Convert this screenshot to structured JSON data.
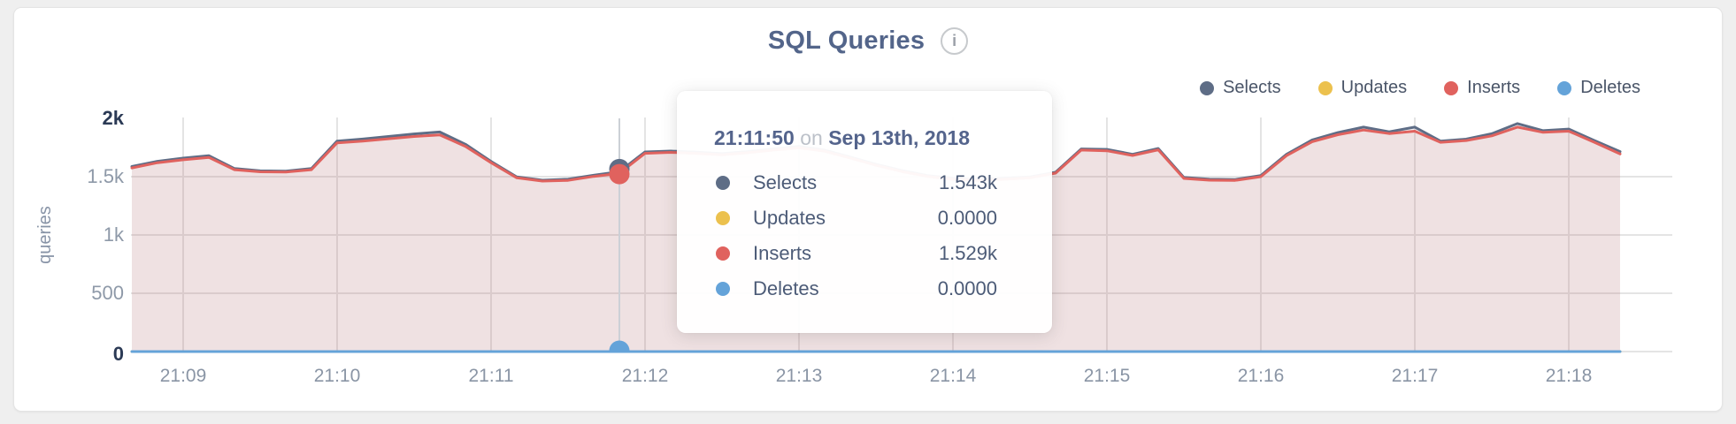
{
  "header": {
    "title": "SQL Queries",
    "info_icon_glyph": "i"
  },
  "legend": {
    "items": [
      {
        "label": "Selects",
        "color": "#5e6d86"
      },
      {
        "label": "Updates",
        "color": "#ecc14e"
      },
      {
        "label": "Inserts",
        "color": "#e0625e"
      },
      {
        "label": "Deletes",
        "color": "#64a3d9"
      }
    ]
  },
  "tooltip": {
    "time": "21:11:50",
    "on_word": "on",
    "date": "Sep 13th, 2018",
    "rows": [
      {
        "label": "Selects",
        "value": "1.543k",
        "color": "#5e6d86"
      },
      {
        "label": "Updates",
        "value": "0.0000",
        "color": "#ecc14e"
      },
      {
        "label": "Inserts",
        "value": "1.529k",
        "color": "#e0625e"
      },
      {
        "label": "Deletes",
        "value": "0.0000",
        "color": "#64a3d9"
      }
    ]
  },
  "chart_data": {
    "type": "area",
    "title": "SQL Queries",
    "ylabel": "queries",
    "ylim": [
      0,
      2000
    ],
    "grid": true,
    "legend_position": "top-right",
    "x_start": "21:08:40",
    "x_interval_seconds": 10,
    "x_ticks": [
      "21:09",
      "21:10",
      "21:11",
      "21:12",
      "21:13",
      "21:14",
      "21:15",
      "21:16",
      "21:17",
      "21:18"
    ],
    "y_ticks": [
      {
        "label": "2k",
        "value": 2000,
        "emphasis": true
      },
      {
        "label": "1.5k",
        "value": 1500,
        "emphasis": false
      },
      {
        "label": "1k",
        "value": 1000,
        "emphasis": false
      },
      {
        "label": "500",
        "value": 500,
        "emphasis": false
      },
      {
        "label": "0",
        "value": 0,
        "emphasis": true
      }
    ],
    "y_gridline_values": [
      1500,
      1000,
      500
    ],
    "series": [
      {
        "name": "Selects",
        "color": "#5e6d86",
        "fill_opacity": 0.08,
        "values": [
          1587,
          1632,
          1659,
          1680,
          1570,
          1550,
          1548,
          1570,
          1805,
          1823,
          1845,
          1867,
          1883,
          1778,
          1630,
          1498,
          1470,
          1478,
          1512,
          1543,
          1712,
          1720,
          1710,
          1698,
          1715,
          1738,
          1760,
          1728,
          1668,
          1606,
          1553,
          1510,
          1486,
          1476,
          1486,
          1498,
          1538,
          1738,
          1734,
          1692,
          1742,
          1493,
          1478,
          1476,
          1510,
          1692,
          1815,
          1878,
          1925,
          1885,
          1925,
          1805,
          1822,
          1868,
          1955,
          1895,
          1908,
          1810,
          1715
        ]
      },
      {
        "name": "Updates",
        "color": "#ecc14e",
        "fill_opacity": 0,
        "values": [
          0,
          0,
          0,
          0,
          0,
          0,
          0,
          0,
          0,
          0,
          0,
          0,
          0,
          0,
          0,
          0,
          0,
          0,
          0,
          0,
          0,
          0,
          0,
          0,
          0,
          0,
          0,
          0,
          0,
          0,
          0,
          0,
          0,
          0,
          0,
          0,
          0,
          0,
          0,
          0,
          0,
          0,
          0,
          0,
          0,
          0,
          0,
          0,
          0,
          0,
          0,
          0,
          0,
          0,
          0,
          0,
          0,
          0,
          0
        ]
      },
      {
        "name": "Inserts",
        "color": "#e0625e",
        "fill_opacity": 0.13,
        "values": [
          1575,
          1620,
          1645,
          1665,
          1560,
          1542,
          1540,
          1560,
          1790,
          1805,
          1825,
          1845,
          1858,
          1760,
          1620,
          1490,
          1462,
          1468,
          1502,
          1529,
          1700,
          1708,
          1700,
          1688,
          1705,
          1728,
          1748,
          1718,
          1660,
          1598,
          1545,
          1502,
          1478,
          1468,
          1478,
          1490,
          1530,
          1728,
          1722,
          1682,
          1730,
          1485,
          1470,
          1468,
          1500,
          1680,
          1800,
          1860,
          1900,
          1870,
          1890,
          1795,
          1810,
          1850,
          1925,
          1880,
          1890,
          1795,
          1695
        ]
      },
      {
        "name": "Deletes",
        "color": "#64a3d9",
        "fill_opacity": 0,
        "values": [
          0,
          0,
          0,
          0,
          0,
          0,
          0,
          0,
          0,
          0,
          0,
          0,
          0,
          0,
          0,
          0,
          0,
          0,
          0,
          0,
          0,
          0,
          0,
          0,
          0,
          0,
          0,
          0,
          0,
          0,
          0,
          0,
          0,
          0,
          0,
          0,
          0,
          0,
          0,
          0,
          0,
          0,
          0,
          0,
          0,
          0,
          0,
          0,
          0,
          0,
          0,
          0,
          0,
          0,
          0,
          0,
          0,
          0,
          0
        ]
      }
    ],
    "hover": {
      "x_index": 19,
      "time": "21:11:50",
      "date": "Sep 13th, 2018",
      "points": [
        {
          "series": "Selects",
          "value": 1543,
          "color": "#5e6d86"
        },
        {
          "series": "Inserts",
          "value": 1529,
          "color": "#e0625e"
        },
        {
          "series": "Deletes",
          "value": 0,
          "color": "#64a3d9",
          "clipped": true
        }
      ]
    }
  }
}
